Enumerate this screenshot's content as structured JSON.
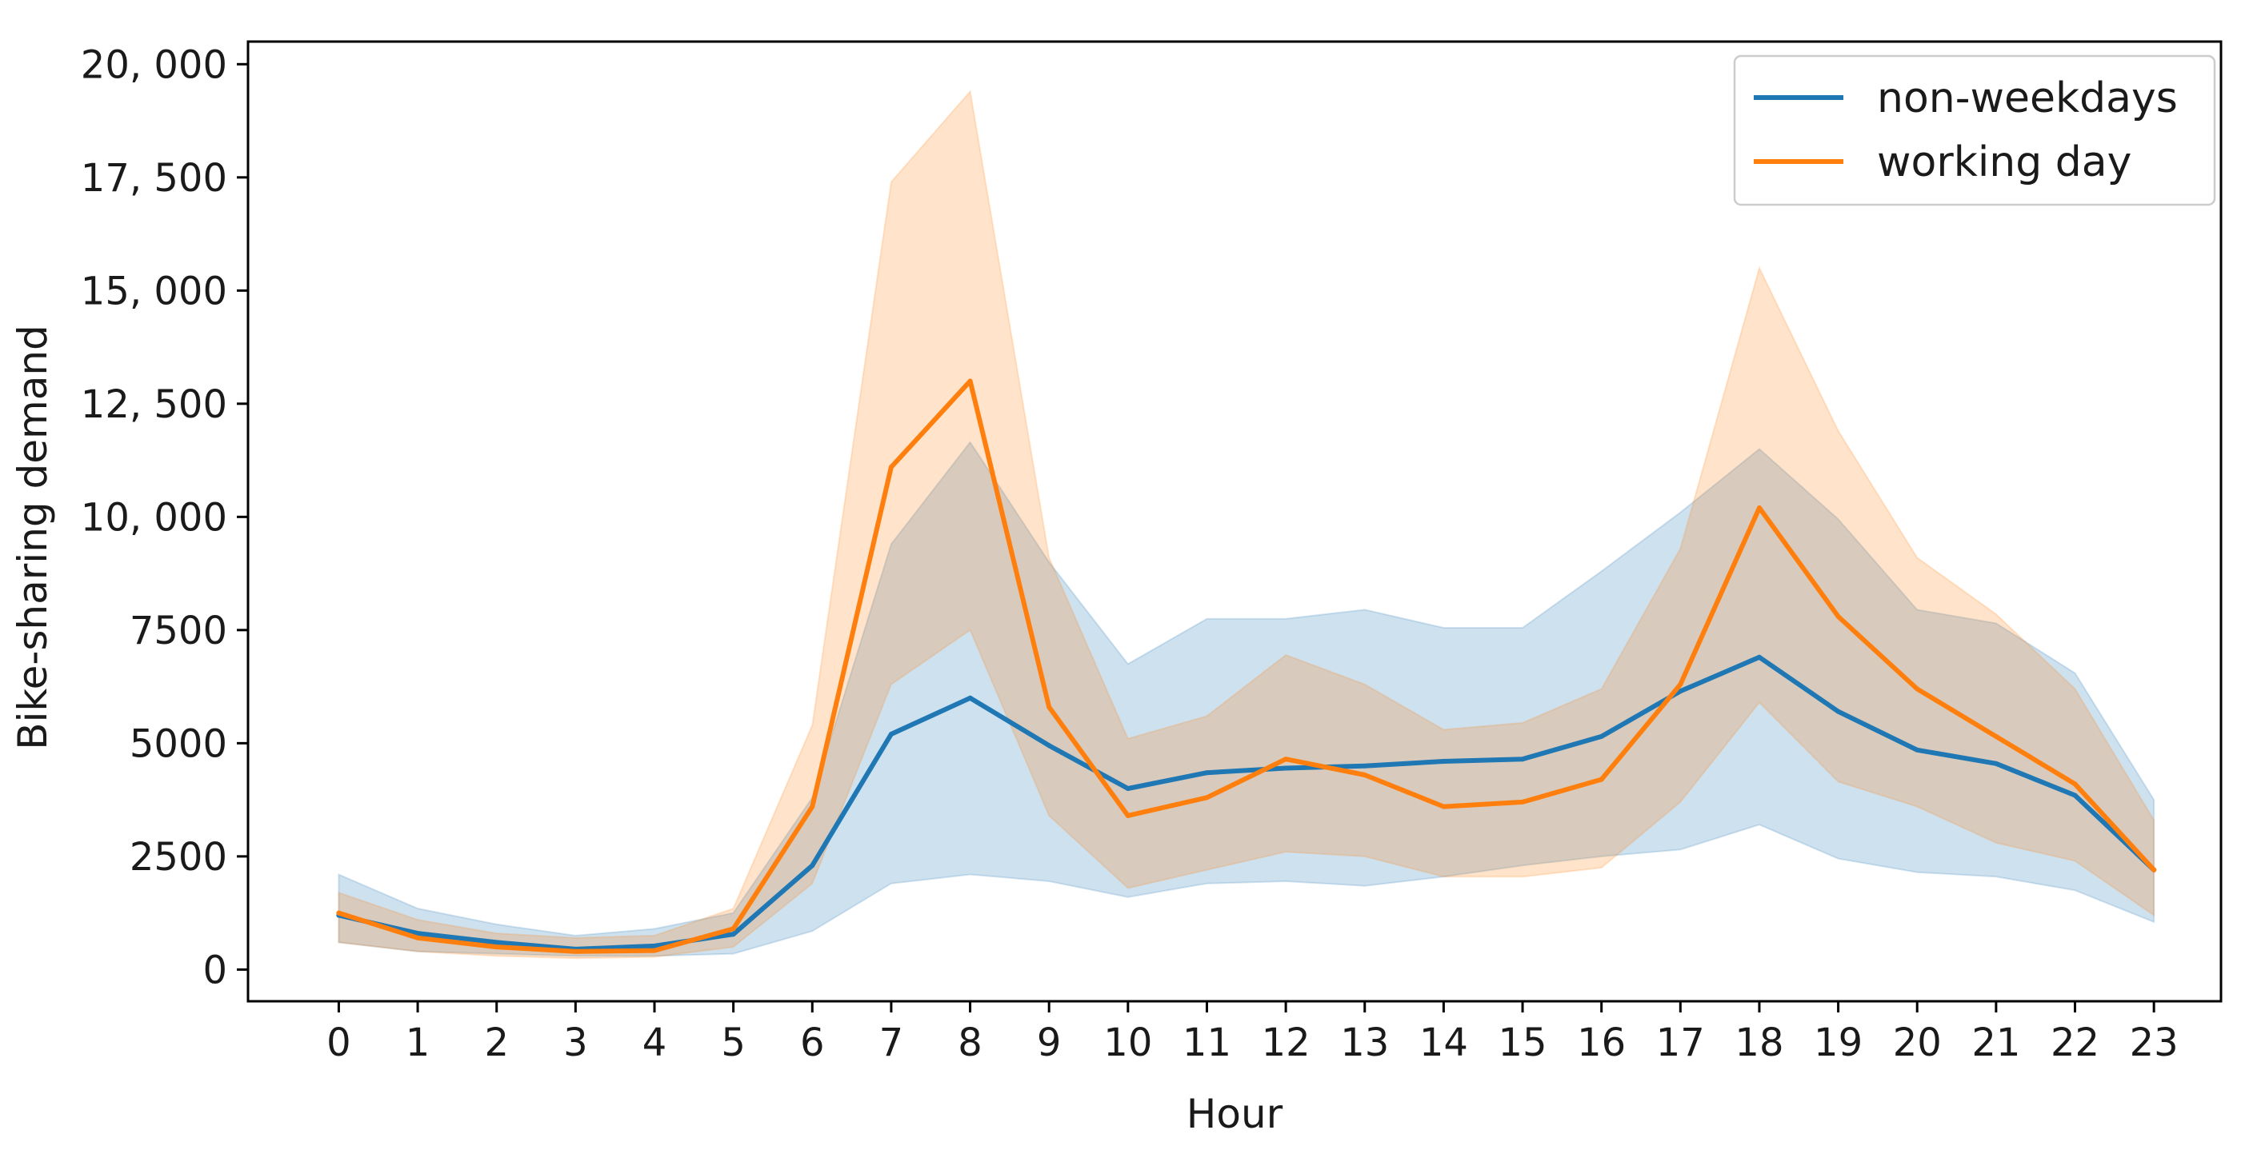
{
  "chart_data": {
    "type": "line",
    "xlabel": "Hour",
    "ylabel": "Bike-sharing demand",
    "x": [
      0,
      1,
      2,
      3,
      4,
      5,
      6,
      7,
      8,
      9,
      10,
      11,
      12,
      13,
      14,
      15,
      16,
      17,
      18,
      19,
      20,
      21,
      22,
      23
    ],
    "x_tick_labels": [
      "0",
      "1",
      "2",
      "3",
      "4",
      "5",
      "6",
      "7",
      "8",
      "9",
      "10",
      "11",
      "12",
      "13",
      "14",
      "15",
      "16",
      "17",
      "18",
      "19",
      "20",
      "21",
      "22",
      "23"
    ],
    "ylim": [
      -700,
      20500
    ],
    "y_ticks": [
      0,
      2500,
      5000,
      7500,
      10000,
      12500,
      15000,
      17500,
      20000
    ],
    "y_tick_labels": [
      "0",
      "2500",
      "5000",
      "7500",
      "10, 000",
      "12, 500",
      "15, 000",
      "17, 500",
      "20, 000"
    ],
    "grid": false,
    "legend_position": "top-right",
    "series": [
      {
        "name": "non-weekdays",
        "color": "#1f77b4",
        "values": [
          1200,
          800,
          600,
          450,
          520,
          780,
          2300,
          5200,
          6000,
          4950,
          4000,
          4350,
          4450,
          4500,
          4600,
          4650,
          5150,
          6150,
          6900,
          5700,
          4850,
          4550,
          3850,
          2200
        ],
        "band_lower": [
          600,
          400,
          350,
          300,
          300,
          350,
          850,
          1900,
          2100,
          1950,
          1600,
          1900,
          1950,
          1850,
          2050,
          2300,
          2500,
          2650,
          3200,
          2450,
          2150,
          2050,
          1750,
          1050
        ],
        "band_upper": [
          2100,
          1350,
          1000,
          750,
          900,
          1250,
          3800,
          9400,
          11650,
          9000,
          6750,
          7750,
          7750,
          7950,
          7550,
          7550,
          8800,
          10100,
          11500,
          9950,
          7950,
          7650,
          6550,
          3750
        ]
      },
      {
        "name": "working day",
        "color": "#ff7f0e",
        "values": [
          1250,
          700,
          500,
          400,
          420,
          900,
          3600,
          11100,
          13000,
          5800,
          3400,
          3800,
          4650,
          4300,
          3600,
          3700,
          4200,
          6300,
          10200,
          7800,
          6200,
          5150,
          4100,
          2200
        ],
        "band_lower": [
          600,
          400,
          300,
          250,
          280,
          500,
          1900,
          6300,
          7500,
          3400,
          1800,
          2200,
          2600,
          2500,
          2050,
          2050,
          2250,
          3700,
          5900,
          4150,
          3600,
          2800,
          2400,
          1200
        ],
        "band_upper": [
          1700,
          1100,
          800,
          700,
          750,
          1350,
          5400,
          17400,
          19400,
          9100,
          5100,
          5600,
          6950,
          6300,
          5300,
          5450,
          6200,
          9300,
          15500,
          11900,
          9100,
          7850,
          6200,
          3300
        ]
      }
    ]
  }
}
